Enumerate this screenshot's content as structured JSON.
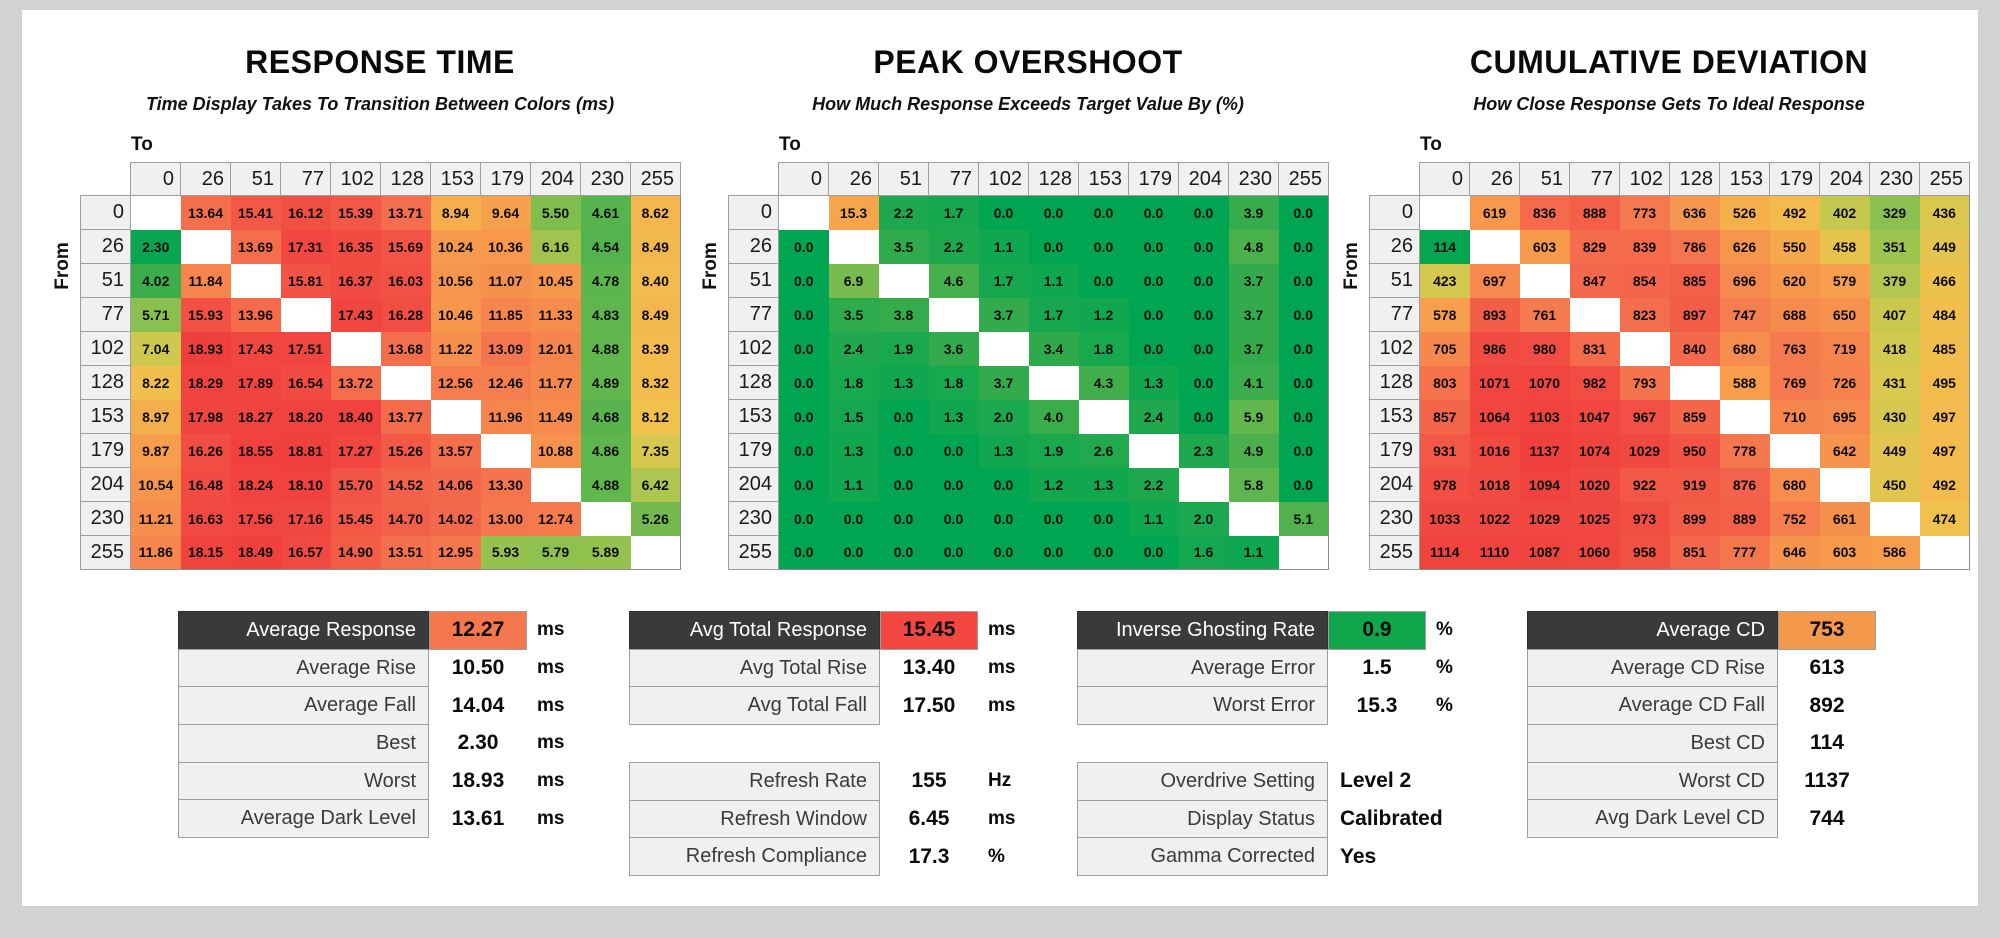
{
  "page": {
    "background": "#d2d2d2",
    "panel_background": "#ffffff"
  },
  "colors": {
    "heatmap_stops": [
      {
        "t": 0.0,
        "color": "#00a551"
      },
      {
        "t": 0.1,
        "color": "#2faa4c"
      },
      {
        "t": 0.18,
        "color": "#69b84e"
      },
      {
        "t": 0.24,
        "color": "#9dc44f"
      },
      {
        "t": 0.3,
        "color": "#d0c94f"
      },
      {
        "t": 0.36,
        "color": "#f2c04d"
      },
      {
        "t": 0.45,
        "color": "#f7a04c"
      },
      {
        "t": 0.55,
        "color": "#f68d4d"
      },
      {
        "t": 0.65,
        "color": "#f5764e"
      },
      {
        "t": 0.75,
        "color": "#f35f49"
      },
      {
        "t": 0.85,
        "color": "#f24b42"
      },
      {
        "t": 1.0,
        "color": "#ef3f3d"
      }
    ],
    "summary_header_bg": "#3a3a3c",
    "avg_response_highlight": "#f4774e",
    "avg_total_response_highlight": "#f4473f",
    "inverse_ghosting_highlight": "#10a64c",
    "average_cd_highlight": "#f4984b"
  },
  "chart_data": [
    {
      "type": "heatmap",
      "title": "RESPONSE TIME",
      "subtitle": "Time Display Takes To Transition Between Colors (ms)",
      "unit": "ms",
      "decimals": 2,
      "x_axis_label": "To",
      "y_axis_label": "From",
      "categories": [
        0,
        26,
        51,
        77,
        102,
        128,
        153,
        179,
        204,
        230,
        255
      ],
      "color_domain": [
        2,
        19
      ],
      "matrix": [
        [
          null,
          13.64,
          15.41,
          16.12,
          15.39,
          13.71,
          8.94,
          9.64,
          5.5,
          4.61,
          8.62
        ],
        [
          2.3,
          null,
          13.69,
          17.31,
          16.35,
          15.69,
          10.24,
          10.36,
          6.16,
          4.54,
          8.49
        ],
        [
          4.02,
          11.84,
          null,
          15.81,
          16.37,
          16.03,
          10.56,
          11.07,
          10.45,
          4.78,
          8.4
        ],
        [
          5.71,
          15.93,
          13.96,
          null,
          17.43,
          16.28,
          10.46,
          11.85,
          11.33,
          4.83,
          8.49
        ],
        [
          7.04,
          18.93,
          17.43,
          17.51,
          null,
          13.68,
          11.22,
          13.09,
          12.01,
          4.88,
          8.39
        ],
        [
          8.22,
          18.29,
          17.89,
          16.54,
          13.72,
          null,
          12.56,
          12.46,
          11.77,
          4.89,
          8.32
        ],
        [
          8.97,
          17.98,
          18.27,
          18.2,
          18.4,
          13.77,
          null,
          11.96,
          11.49,
          4.68,
          8.12
        ],
        [
          9.87,
          16.26,
          18.55,
          18.81,
          17.27,
          15.26,
          13.57,
          null,
          10.88,
          4.86,
          7.35
        ],
        [
          10.54,
          16.48,
          18.24,
          18.1,
          15.7,
          14.52,
          14.06,
          13.3,
          null,
          4.88,
          6.42
        ],
        [
          11.21,
          16.63,
          17.56,
          17.16,
          15.45,
          14.7,
          14.02,
          13.0,
          12.74,
          null,
          5.26
        ],
        [
          11.86,
          18.15,
          18.49,
          16.57,
          14.9,
          13.51,
          12.95,
          5.93,
          5.79,
          5.89,
          null
        ]
      ]
    },
    {
      "type": "heatmap",
      "title": "PEAK OVERSHOOT",
      "subtitle": "How Much Response Exceeds Target Value By (%)",
      "unit": "%",
      "decimals": 1,
      "x_axis_label": "To",
      "y_axis_label": "From",
      "categories": [
        0,
        26,
        51,
        77,
        102,
        128,
        153,
        179,
        204,
        230,
        255
      ],
      "color_domain": [
        0,
        35
      ],
      "matrix": [
        [
          null,
          15.3,
          2.2,
          1.7,
          0.0,
          0.0,
          0.0,
          0.0,
          0.0,
          3.9,
          0.0
        ],
        [
          0.0,
          null,
          3.5,
          2.2,
          1.1,
          0.0,
          0.0,
          0.0,
          0.0,
          4.8,
          0.0
        ],
        [
          0.0,
          6.9,
          null,
          4.6,
          1.7,
          1.1,
          0.0,
          0.0,
          0.0,
          3.7,
          0.0
        ],
        [
          0.0,
          3.5,
          3.8,
          null,
          3.7,
          1.7,
          1.2,
          0.0,
          0.0,
          3.7,
          0.0
        ],
        [
          0.0,
          2.4,
          1.9,
          3.6,
          null,
          3.4,
          1.8,
          0.0,
          0.0,
          3.7,
          0.0
        ],
        [
          0.0,
          1.8,
          1.3,
          1.8,
          3.7,
          null,
          4.3,
          1.3,
          0.0,
          4.1,
          0.0
        ],
        [
          0.0,
          1.5,
          0.0,
          1.3,
          2.0,
          4.0,
          null,
          2.4,
          0.0,
          5.9,
          0.0
        ],
        [
          0.0,
          1.3,
          0.0,
          0.0,
          1.3,
          1.9,
          2.6,
          null,
          2.3,
          4.9,
          0.0
        ],
        [
          0.0,
          1.1,
          0.0,
          0.0,
          0.0,
          1.2,
          1.3,
          2.2,
          null,
          5.8,
          0.0
        ],
        [
          0.0,
          0.0,
          0.0,
          0.0,
          0.0,
          0.0,
          0.0,
          1.1,
          2.0,
          null,
          5.1
        ],
        [
          0.0,
          0.0,
          0.0,
          0.0,
          0.0,
          0.0,
          0.0,
          0.0,
          1.6,
          1.1,
          null
        ]
      ]
    },
    {
      "type": "heatmap",
      "title": "CUMULATIVE DEVIATION",
      "subtitle": "How Close Response Gets To Ideal Response",
      "unit": "",
      "decimals": 0,
      "x_axis_label": "To",
      "y_axis_label": "From",
      "categories": [
        0,
        26,
        51,
        77,
        102,
        128,
        153,
        179,
        204,
        230,
        255
      ],
      "color_domain": [
        100,
        1150
      ],
      "matrix": [
        [
          null,
          619,
          836,
          888,
          773,
          636,
          526,
          492,
          402,
          329,
          436
        ],
        [
          114,
          null,
          603,
          829,
          839,
          786,
          626,
          550,
          458,
          351,
          449
        ],
        [
          423,
          697,
          null,
          847,
          854,
          885,
          696,
          620,
          579,
          379,
          466
        ],
        [
          578,
          893,
          761,
          null,
          823,
          897,
          747,
          688,
          650,
          407,
          484
        ],
        [
          705,
          986,
          980,
          831,
          null,
          840,
          680,
          763,
          719,
          418,
          485
        ],
        [
          803,
          1071,
          1070,
          982,
          793,
          null,
          588,
          769,
          726,
          431,
          495
        ],
        [
          857,
          1064,
          1103,
          1047,
          967,
          859,
          null,
          710,
          695,
          430,
          497
        ],
        [
          931,
          1016,
          1137,
          1074,
          1029,
          950,
          778,
          null,
          642,
          449,
          497
        ],
        [
          978,
          1018,
          1094,
          1020,
          922,
          919,
          876,
          680,
          null,
          450,
          492
        ],
        [
          1033,
          1022,
          1029,
          1025,
          973,
          899,
          889,
          752,
          661,
          null,
          474
        ],
        [
          1114,
          1110,
          1087,
          1060,
          958,
          851,
          777,
          646,
          603,
          586,
          null
        ]
      ]
    }
  ],
  "summary_tables": [
    {
      "id": "response-time-summary",
      "rows": [
        {
          "label": "Average Response",
          "value": "12.27",
          "unit": "ms",
          "header": true,
          "value_color": "#f4774e"
        },
        {
          "label": "Average Rise",
          "value": "10.50",
          "unit": "ms"
        },
        {
          "label": "Average Fall",
          "value": "14.04",
          "unit": "ms"
        },
        {
          "label": "Best",
          "value": "2.30",
          "unit": "ms"
        },
        {
          "label": "Worst",
          "value": "18.93",
          "unit": "ms"
        },
        {
          "label": "Average Dark Level",
          "value": "13.61",
          "unit": "ms"
        }
      ]
    },
    {
      "id": "total-response-summary",
      "rows": [
        {
          "label": "Avg Total Response",
          "value": "15.45",
          "unit": "ms",
          "header": true,
          "value_color": "#f4473f"
        },
        {
          "label": "Avg Total Rise",
          "value": "13.40",
          "unit": "ms"
        },
        {
          "label": "Avg Total Fall",
          "value": "17.50",
          "unit": "ms"
        }
      ]
    },
    {
      "id": "refresh-summary",
      "rows": [
        {
          "label": "Refresh Rate",
          "value": "155",
          "unit": "Hz"
        },
        {
          "label": "Refresh Window",
          "value": "6.45",
          "unit": "ms"
        },
        {
          "label": "Refresh Compliance",
          "value": "17.3",
          "unit": "%"
        }
      ]
    },
    {
      "id": "overshoot-summary",
      "rows": [
        {
          "label": "Inverse Ghosting Rate",
          "value": "0.9",
          "unit": "%",
          "header": true,
          "value_color": "#10a64c"
        },
        {
          "label": "Average Error",
          "value": "1.5",
          "unit": "%"
        },
        {
          "label": "Worst Error",
          "value": "15.3",
          "unit": "%"
        }
      ]
    },
    {
      "id": "settings-summary",
      "value_align": "left",
      "rows": [
        {
          "label": "Overdrive Setting",
          "value": "Level 2",
          "unit": ""
        },
        {
          "label": "Display Status",
          "value": "Calibrated",
          "unit": ""
        },
        {
          "label": "Gamma Corrected",
          "value": "Yes",
          "unit": ""
        }
      ]
    },
    {
      "id": "cumulative-deviation-summary",
      "rows": [
        {
          "label": "Average CD",
          "value": "753",
          "unit": "",
          "header": true,
          "value_color": "#f4984b"
        },
        {
          "label": "Average CD Rise",
          "value": "613",
          "unit": ""
        },
        {
          "label": "Average CD Fall",
          "value": "892",
          "unit": ""
        },
        {
          "label": "Best CD",
          "value": "114",
          "unit": ""
        },
        {
          "label": "Worst CD",
          "value": "1137",
          "unit": ""
        },
        {
          "label": "Avg Dark Level CD",
          "value": "744",
          "unit": ""
        }
      ]
    }
  ]
}
